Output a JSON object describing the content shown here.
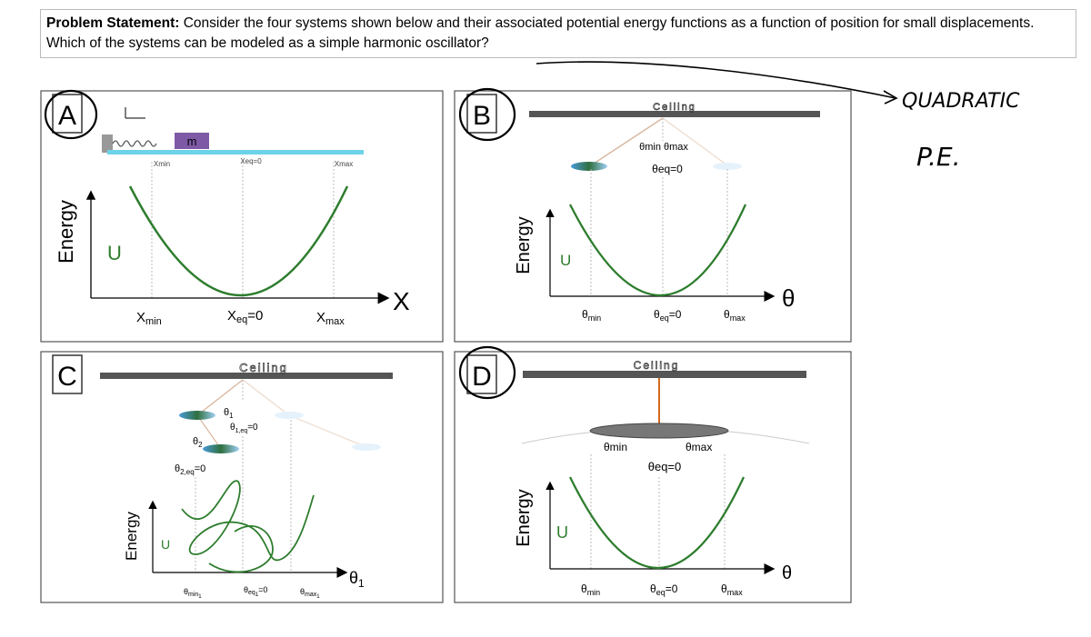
{
  "problem": {
    "heading": "Problem Statement:",
    "text": " Consider the four systems shown below and their associated potential energy functions as a function of position for small displacements.  Which of the systems can be modeled as a simple harmonic oscillator?"
  },
  "annotation": {
    "line1": "QUADRATIC",
    "line2": "P.E."
  },
  "panelA": {
    "letter": "A",
    "energy": "Energy",
    "u": "U",
    "mass": "m",
    "axis": "X",
    "xmin": "X",
    "xmin_sub": "min",
    "xeq": "X",
    "xeq_sub": "eq",
    "xeq_tail": "=0",
    "xmax": "X",
    "xmax_sub": "max",
    "top_xmin": "Xmin",
    "top_xeq": "Xeq=0",
    "top_xmax": "Xmax"
  },
  "panelB": {
    "letter": "B",
    "ceiling": "Ceiling",
    "energy": "Energy",
    "u": "U",
    "axis": "θ",
    "min_max_top": "θmin θmax",
    "eq_top": "θeq=0",
    "tmin": "θ",
    "tmin_sub": "min",
    "teq": "θ",
    "teq_sub": "eq",
    "teq_tail": "=0",
    "tmax": "θ",
    "tmax_sub": "max"
  },
  "panelC": {
    "letter": "C",
    "ceiling": "Ceiling",
    "energy": "Energy",
    "u": "U",
    "axis": "θ",
    "axis_sub": "1",
    "theta1": "θ",
    "theta1_sub": "1",
    "theta1eq": "θ",
    "theta1eq_sub": "1,eq",
    "theta1eq_tail": "=0",
    "theta2": "θ",
    "theta2_sub": "2",
    "theta2eq": "θ",
    "theta2eq_sub": "2,eq",
    "theta2eq_tail": "=0",
    "tmin": "θ",
    "tmin_sub": "min",
    "tmin_sub2": "1",
    "teq": "θ",
    "teq_sub": "eq",
    "teq_sub2": "1",
    "teq_tail": "=0",
    "tmax": "θ",
    "tmax_sub": "max",
    "tmax_sub2": "1"
  },
  "panelD": {
    "letter": "D",
    "ceiling": "Ceiling",
    "energy": "Energy",
    "u": "U",
    "axis": "θ",
    "min_top": "θmin",
    "max_top": "θmax",
    "eq_top": "θeq=0",
    "tmin": "θ",
    "tmin_sub": "min",
    "teq": "θ",
    "teq_sub": "eq",
    "teq_tail": "=0",
    "tmax": "θ",
    "tmax_sub": "max"
  }
}
